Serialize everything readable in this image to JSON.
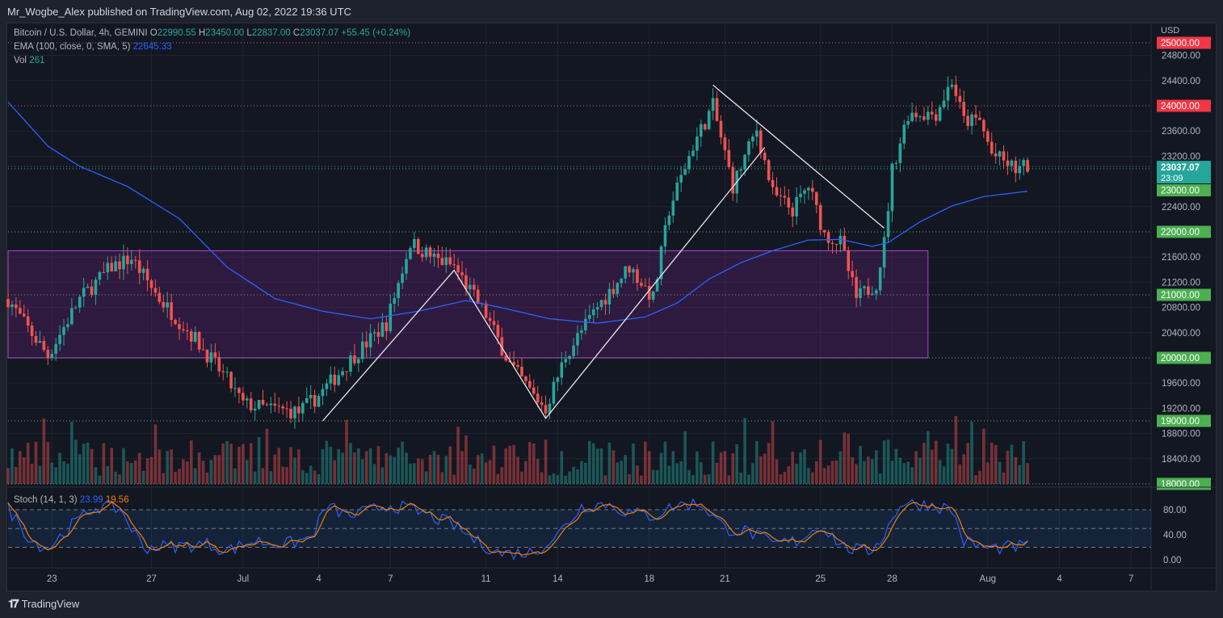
{
  "header": {
    "published": "Mr_Wogbe_Alex published on TradingView.com, Aug 02, 2022 19:36 UTC"
  },
  "legend": {
    "symbol": "Bitcoin / U.S. Dollar, 4h, GEMINI",
    "o_label": "O",
    "o": "22990.55",
    "h_label": "H",
    "h": "23450.00",
    "l_label": "L",
    "l": "22837.00",
    "c_label": "C",
    "c": "23037.07",
    "change": "+55.45 (+0.24%)",
    "ema_label": "EMA (100, close, 0, SMA, 5)",
    "ema_value": "22645.33",
    "vol_label": "Vol",
    "vol_value": "261",
    "stoch_label": "Stoch (14, 1, 3)",
    "stoch_k": "23.99",
    "stoch_d": "19.56"
  },
  "footer": {
    "brand": "TradingView"
  },
  "colors": {
    "up": "#26a69a",
    "down": "#ef5350",
    "ema": "#2962ff",
    "stoch_k": "#2962ff",
    "stoch_d": "#f57c00",
    "zone": "#9c27b0",
    "resistance": "#f23645",
    "support": "#4caf50"
  },
  "chart_data": {
    "type": "candlestick",
    "currency": "USD",
    "price_ticks": [
      24800,
      24400,
      23600,
      23200,
      22400,
      21600,
      21200,
      20800,
      20400,
      19600,
      19200,
      18800,
      18400
    ],
    "ylim": [
      18000,
      25000
    ],
    "levels": [
      {
        "price": 25000,
        "label": "25000.00",
        "kind": "resistance"
      },
      {
        "price": 24000,
        "label": "24000.00",
        "kind": "resistance"
      },
      {
        "price": 23000,
        "label": "23000.00",
        "kind": "support"
      },
      {
        "price": 22000,
        "label": "22000.00",
        "kind": "support"
      },
      {
        "price": 21000,
        "label": "21000.00",
        "kind": "support"
      },
      {
        "price": 20000,
        "label": "20000.00",
        "kind": "support"
      },
      {
        "price": 19000,
        "label": "19000.00",
        "kind": "support"
      },
      {
        "price": 18000,
        "label": "18000.00",
        "kind": "support"
      }
    ],
    "last_price": {
      "label": "23037.07",
      "countdown": "23:09",
      "price": 23037.07
    },
    "x_ticks": [
      {
        "bar": 11,
        "label": "23"
      },
      {
        "bar": 36,
        "label": "27"
      },
      {
        "bar": 59,
        "label": "Jul"
      },
      {
        "bar": 78,
        "label": "4"
      },
      {
        "bar": 96,
        "label": "7"
      },
      {
        "bar": 120,
        "label": "11"
      },
      {
        "bar": 138,
        "label": "14"
      },
      {
        "bar": 161,
        "label": "18"
      },
      {
        "bar": 180,
        "label": "21"
      },
      {
        "bar": 204,
        "label": "25"
      },
      {
        "bar": 222,
        "label": "28"
      },
      {
        "bar": 246,
        "label": "Aug"
      },
      {
        "bar": 264,
        "label": "4"
      },
      {
        "bar": 282,
        "label": "7"
      }
    ],
    "price_path": [
      [
        0,
        20936
      ],
      [
        4,
        20550
      ],
      [
        10,
        20040
      ],
      [
        18,
        20936
      ],
      [
        26,
        21450
      ],
      [
        31,
        21580
      ],
      [
        38,
        20940
      ],
      [
        47,
        20300
      ],
      [
        55,
        19650
      ],
      [
        59,
        19270
      ],
      [
        65,
        19200
      ],
      [
        73,
        19140
      ],
      [
        78,
        19400
      ],
      [
        87,
        20040
      ],
      [
        95,
        20550
      ],
      [
        101,
        21830
      ],
      [
        107,
        21580
      ],
      [
        112,
        21450
      ],
      [
        120,
        20680
      ],
      [
        126,
        19900
      ],
      [
        132,
        19400
      ],
      [
        135,
        19200
      ],
      [
        140,
        20040
      ],
      [
        148,
        20810
      ],
      [
        156,
        21450
      ],
      [
        162,
        20940
      ],
      [
        166,
        22350
      ],
      [
        172,
        23370
      ],
      [
        177,
        24000
      ],
      [
        182,
        22730
      ],
      [
        188,
        23630
      ],
      [
        192,
        22600
      ],
      [
        197,
        22350
      ],
      [
        201,
        22730
      ],
      [
        205,
        21960
      ],
      [
        209,
        21830
      ],
      [
        213,
        20940
      ],
      [
        218,
        21190
      ],
      [
        220,
        21830
      ],
      [
        222,
        22990
      ],
      [
        226,
        23880
      ],
      [
        233,
        23880
      ],
      [
        237,
        24400
      ],
      [
        240,
        23760
      ],
      [
        244,
        23760
      ],
      [
        247,
        23240
      ],
      [
        253,
        22990
      ],
      [
        256,
        23037
      ]
    ],
    "ema_path": [
      [
        0,
        24060
      ],
      [
        10,
        23360
      ],
      [
        18,
        23040
      ],
      [
        30,
        22720
      ],
      [
        43,
        22210
      ],
      [
        55,
        21440
      ],
      [
        67,
        20940
      ],
      [
        79,
        20740
      ],
      [
        91,
        20620
      ],
      [
        103,
        20740
      ],
      [
        115,
        20910
      ],
      [
        123,
        20810
      ],
      [
        136,
        20620
      ],
      [
        148,
        20550
      ],
      [
        160,
        20650
      ],
      [
        168,
        20870
      ],
      [
        176,
        21250
      ],
      [
        184,
        21510
      ],
      [
        192,
        21700
      ],
      [
        201,
        21870
      ],
      [
        209,
        21880
      ],
      [
        217,
        21770
      ],
      [
        221,
        21830
      ],
      [
        229,
        22160
      ],
      [
        237,
        22410
      ],
      [
        245,
        22560
      ],
      [
        256,
        22645
      ]
    ],
    "zone": {
      "top": 21700,
      "bottom": 20000,
      "bar_start": 0,
      "bar_end": 231
    },
    "trendlines": [
      [
        [
          79,
          19000
        ],
        [
          112,
          21390
        ],
        [
          135,
          19040
        ],
        [
          190,
          23340
        ]
      ],
      [
        [
          177,
          24330
        ],
        [
          220,
          22060
        ]
      ]
    ],
    "stoch_ticks": [
      80,
      40,
      0
    ],
    "stoch_bands": [
      80,
      50,
      20
    ],
    "stoch_path": [
      [
        0,
        82
      ],
      [
        6,
        30
      ],
      [
        10,
        18
      ],
      [
        16,
        55
      ],
      [
        22,
        85
      ],
      [
        28,
        82
      ],
      [
        34,
        20
      ],
      [
        42,
        22
      ],
      [
        50,
        25
      ],
      [
        55,
        15
      ],
      [
        62,
        30
      ],
      [
        70,
        25
      ],
      [
        76,
        35
      ],
      [
        80,
        85
      ],
      [
        86,
        70
      ],
      [
        96,
        88
      ],
      [
        104,
        75
      ],
      [
        112,
        55
      ],
      [
        118,
        28
      ],
      [
        124,
        10
      ],
      [
        132,
        12
      ],
      [
        138,
        40
      ],
      [
        144,
        85
      ],
      [
        150,
        90
      ],
      [
        156,
        75
      ],
      [
        162,
        70
      ],
      [
        168,
        88
      ],
      [
        174,
        90
      ],
      [
        180,
        50
      ],
      [
        186,
        45
      ],
      [
        192,
        25
      ],
      [
        198,
        30
      ],
      [
        204,
        55
      ],
      [
        210,
        20
      ],
      [
        216,
        12
      ],
      [
        220,
        40
      ],
      [
        224,
        90
      ],
      [
        232,
        88
      ],
      [
        237,
        80
      ],
      [
        240,
        30
      ],
      [
        246,
        18
      ],
      [
        256,
        22
      ]
    ]
  }
}
